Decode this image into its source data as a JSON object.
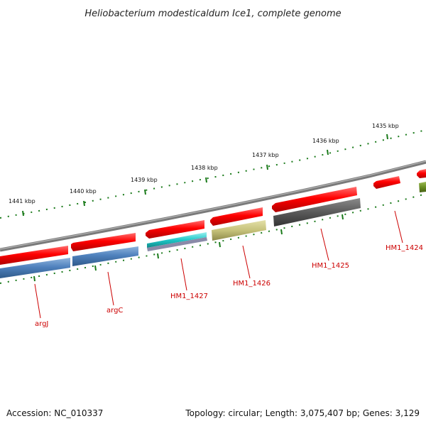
{
  "title": "Heliobacterium modesticaldum Ice1, complete genome",
  "footer": {
    "accession": "Accession: NC_010337",
    "summary": "Topology: circular; Length: 3,075,407 bp; Genes: 3,129"
  },
  "colors": {
    "backbone": "#7a7a7a",
    "forward_cds": "#ff0000",
    "reverse_blue": "#4f81bd",
    "reverse_cyan": "#1fc8c8",
    "reverse_olive": "#c6c27a",
    "reverse_dark": "#5a5a5a",
    "olive_green": "#6b8e23",
    "tick": "#1a7a1a",
    "label": "#cc0000"
  },
  "kbp_labels": [
    "1441 kbp",
    "1440 kbp",
    "1439 kbp",
    "1438 kbp",
    "1437 kbp",
    "1436 kbp",
    "1435 kbp"
  ],
  "genes": [
    {
      "name": "argJ"
    },
    {
      "name": "argC"
    },
    {
      "name": "HM1_1427"
    },
    {
      "name": "HM1_1426"
    },
    {
      "name": "HM1_1425"
    },
    {
      "name": "HM1_1424"
    }
  ]
}
